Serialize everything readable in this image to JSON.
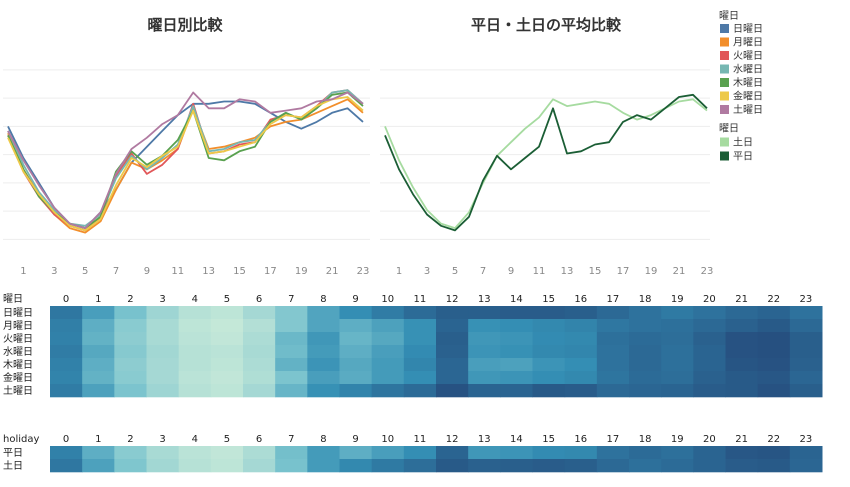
{
  "chart_data": [
    {
      "type": "line",
      "title": "曜日別比較",
      "x": [
        0,
        1,
        2,
        3,
        4,
        5,
        6,
        7,
        8,
        9,
        10,
        11,
        12,
        13,
        14,
        15,
        16,
        17,
        18,
        19,
        20,
        21,
        22,
        23
      ],
      "xticks": [
        1,
        3,
        5,
        7,
        9,
        11,
        13,
        15,
        17,
        19,
        21,
        23
      ],
      "ylim": [
        0,
        100
      ],
      "series": [
        {
          "name": "日曜日",
          "color": "#4e79a7",
          "values": [
            60,
            46,
            35,
            24,
            17,
            15,
            22,
            32,
            44,
            51,
            58,
            65,
            70,
            70,
            71,
            71,
            70,
            66,
            62,
            59,
            62,
            66,
            68,
            62
          ]
        },
        {
          "name": "月曜日",
          "color": "#f28e2b",
          "values": [
            57,
            41,
            30,
            21,
            15,
            13,
            18,
            32,
            44,
            41,
            45,
            50,
            68,
            50,
            51,
            53,
            55,
            60,
            62,
            63,
            66,
            69,
            72,
            66
          ]
        },
        {
          "name": "火曜日",
          "color": "#e15759",
          "values": [
            56,
            40,
            29,
            21,
            16,
            14,
            20,
            38,
            48,
            39,
            43,
            50,
            70,
            48,
            49,
            52,
            53,
            63,
            65,
            64,
            69,
            75,
            76,
            70
          ]
        },
        {
          "name": "水曜日",
          "color": "#76b7b2",
          "values": [
            58,
            43,
            31,
            23,
            17,
            16,
            21,
            37,
            47,
            41,
            46,
            52,
            69,
            49,
            50,
            53,
            54,
            62,
            66,
            63,
            68,
            75,
            76,
            70
          ]
        },
        {
          "name": "木曜日",
          "color": "#59a14f",
          "values": [
            56,
            41,
            29,
            22,
            17,
            15,
            20,
            40,
            49,
            43,
            47,
            54,
            67,
            46,
            45,
            49,
            51,
            62,
            66,
            63,
            68,
            74,
            75,
            69
          ]
        },
        {
          "name": "金曜日",
          "color": "#edc948",
          "values": [
            55,
            40,
            30,
            22,
            16,
            14,
            19,
            34,
            46,
            42,
            47,
            51,
            67,
            48,
            49,
            51,
            53,
            61,
            65,
            64,
            69,
            72,
            73,
            67
          ]
        },
        {
          "name": "土曜日",
          "color": "#b07aa1",
          "values": [
            58,
            45,
            34,
            24,
            17,
            15,
            22,
            39,
            50,
            55,
            61,
            65,
            75,
            68,
            68,
            72,
            71,
            66,
            67,
            68,
            71,
            72,
            75,
            70
          ]
        }
      ]
    },
    {
      "type": "line",
      "title": "平日・土日の平均比較",
      "x": [
        0,
        1,
        2,
        3,
        4,
        5,
        6,
        7,
        8,
        9,
        10,
        11,
        12,
        13,
        14,
        15,
        16,
        17,
        18,
        19,
        20,
        21,
        22,
        23
      ],
      "xticks": [
        1,
        3,
        5,
        7,
        9,
        11,
        13,
        15,
        17,
        19,
        21,
        23
      ],
      "ylim": [
        0,
        100
      ],
      "legend_title": "曜日",
      "series": [
        {
          "name": "土日",
          "color": "#a6dba0",
          "values": [
            60,
            45,
            33,
            23,
            17,
            15,
            22,
            35,
            47,
            53,
            59,
            64,
            72,
            69,
            70,
            71,
            70,
            66,
            63,
            65,
            68,
            71,
            72,
            67
          ]
        },
        {
          "name": "平日",
          "color": "#1b5e35",
          "values": [
            56,
            41,
            30,
            21,
            16,
            14,
            20,
            36,
            47,
            41,
            46,
            51,
            68,
            48,
            49,
            52,
            53,
            62,
            65,
            63,
            68,
            73,
            74,
            68
          ]
        }
      ]
    },
    {
      "type": "heatmap",
      "row_header": "曜日",
      "columns": [
        "0",
        "1",
        "2",
        "3",
        "4",
        "5",
        "6",
        "7",
        "8",
        "9",
        "10",
        "11",
        "12",
        "13",
        "14",
        "15",
        "16",
        "17",
        "18",
        "19",
        "20",
        "21",
        "22",
        "23"
      ],
      "rows": [
        {
          "name": "日曜日",
          "values": [
            60,
            46,
            35,
            24,
            17,
            15,
            22,
            32,
            44,
            51,
            58,
            65,
            70,
            70,
            71,
            71,
            70,
            66,
            62,
            59,
            62,
            66,
            68,
            62
          ]
        },
        {
          "name": "月曜日",
          "values": [
            57,
            41,
            30,
            21,
            15,
            13,
            18,
            32,
            44,
            41,
            45,
            50,
            68,
            50,
            51,
            53,
            55,
            60,
            62,
            63,
            66,
            69,
            72,
            66
          ]
        },
        {
          "name": "火曜日",
          "values": [
            56,
            40,
            29,
            21,
            16,
            14,
            20,
            38,
            48,
            39,
            43,
            50,
            70,
            48,
            49,
            52,
            53,
            63,
            65,
            64,
            69,
            75,
            76,
            70
          ]
        },
        {
          "name": "水曜日",
          "values": [
            58,
            43,
            31,
            23,
            17,
            16,
            21,
            37,
            47,
            41,
            46,
            52,
            69,
            49,
            50,
            53,
            54,
            62,
            66,
            63,
            68,
            75,
            76,
            70
          ]
        },
        {
          "name": "木曜日",
          "values": [
            56,
            41,
            29,
            22,
            17,
            15,
            20,
            40,
            49,
            43,
            47,
            54,
            67,
            46,
            45,
            49,
            51,
            62,
            66,
            63,
            68,
            74,
            75,
            69
          ]
        },
        {
          "name": "金曜日",
          "values": [
            55,
            40,
            30,
            22,
            16,
            14,
            19,
            34,
            46,
            42,
            47,
            51,
            67,
            48,
            49,
            51,
            53,
            61,
            65,
            64,
            69,
            72,
            73,
            67
          ]
        },
        {
          "name": "土曜日",
          "values": [
            58,
            45,
            34,
            24,
            17,
            15,
            22,
            39,
            50,
            55,
            61,
            65,
            75,
            68,
            68,
            72,
            71,
            66,
            67,
            68,
            71,
            72,
            75,
            70
          ]
        }
      ]
    },
    {
      "type": "heatmap",
      "row_header": "holiday",
      "columns": [
        "0",
        "1",
        "2",
        "3",
        "4",
        "5",
        "6",
        "7",
        "8",
        "9",
        "10",
        "11",
        "12",
        "13",
        "14",
        "15",
        "16",
        "17",
        "18",
        "19",
        "20",
        "21",
        "22",
        "23"
      ],
      "rows": [
        {
          "name": "平日",
          "values": [
            56,
            41,
            30,
            21,
            16,
            14,
            20,
            36,
            47,
            41,
            46,
            51,
            68,
            48,
            49,
            52,
            53,
            62,
            65,
            63,
            68,
            73,
            74,
            68
          ]
        },
        {
          "name": "土日",
          "values": [
            60,
            45,
            33,
            23,
            17,
            15,
            22,
            35,
            47,
            53,
            59,
            64,
            72,
            69,
            70,
            71,
            70,
            66,
            63,
            65,
            68,
            71,
            72,
            67
          ]
        }
      ]
    }
  ],
  "legend_top": {
    "title": "曜日"
  }
}
